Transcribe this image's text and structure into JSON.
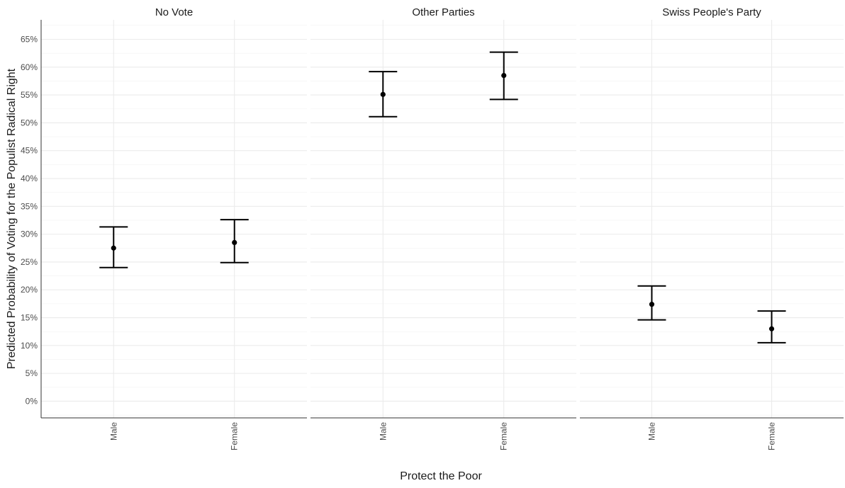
{
  "chart_data": {
    "type": "errorbar",
    "xlabel": "Protect the Poor",
    "ylabel": "Predicted Probability of Voting for the Populist Radical Right",
    "ylim": [
      -0.03,
      0.685
    ],
    "y_ticks": [
      0,
      0.05,
      0.1,
      0.15,
      0.2,
      0.25,
      0.3,
      0.35,
      0.4,
      0.45,
      0.5,
      0.55,
      0.6,
      0.65
    ],
    "y_tick_labels": [
      "0%",
      "5%",
      "10%",
      "15%",
      "20%",
      "25%",
      "30%",
      "35%",
      "40%",
      "45%",
      "50%",
      "55%",
      "60%",
      "65%"
    ],
    "categories": [
      "Male",
      "Female"
    ],
    "grid": true,
    "legend": "none",
    "facets": [
      {
        "title": "No Vote",
        "points": [
          {
            "x": "Male",
            "y": 0.275,
            "lower": 0.24,
            "upper": 0.313
          },
          {
            "x": "Female",
            "y": 0.285,
            "lower": 0.249,
            "upper": 0.326
          }
        ]
      },
      {
        "title": "Other Parties",
        "points": [
          {
            "x": "Male",
            "y": 0.551,
            "lower": 0.511,
            "upper": 0.592
          },
          {
            "x": "Female",
            "y": 0.585,
            "lower": 0.542,
            "upper": 0.627
          }
        ]
      },
      {
        "title": "Swiss People's Party",
        "points": [
          {
            "x": "Male",
            "y": 0.174,
            "lower": 0.146,
            "upper": 0.207
          },
          {
            "x": "Female",
            "y": 0.13,
            "lower": 0.105,
            "upper": 0.162
          }
        ]
      }
    ]
  }
}
